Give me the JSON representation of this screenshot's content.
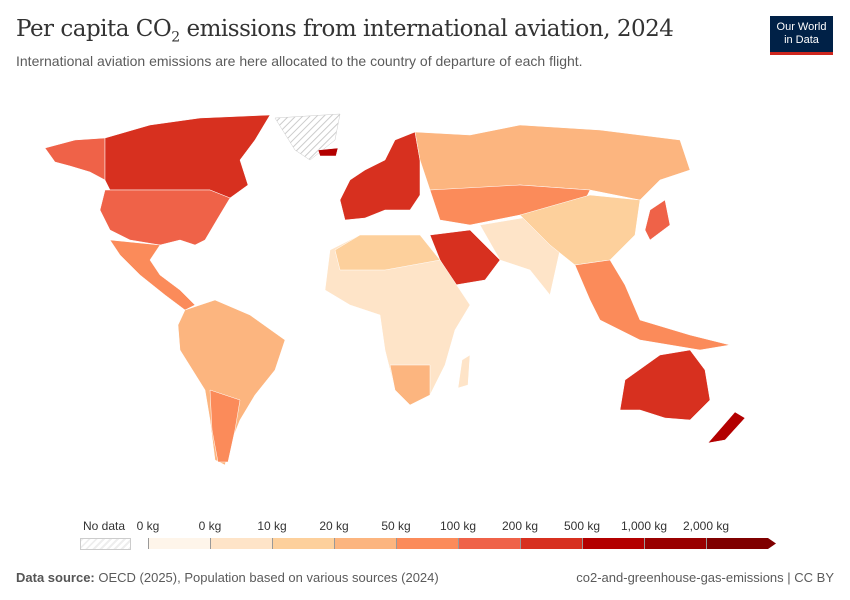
{
  "header": {
    "title_pre": "Per capita CO",
    "title_sub": "2",
    "title_post": " emissions from international aviation, 2024",
    "subtitle": "International aviation emissions are here allocated to the country of departure of each flight.",
    "logo_line1": "Our World",
    "logo_line2": "in Data"
  },
  "legend": {
    "no_data": "No data",
    "labels": [
      "0 kg",
      "0 kg",
      "10 kg",
      "20 kg",
      "50 kg",
      "100 kg",
      "200 kg",
      "500 kg",
      "1,000 kg",
      "2,000 kg"
    ],
    "colors": [
      "#fef5ea",
      "#fee4c8",
      "#fdd09c",
      "#fcb57f",
      "#fb8b5a",
      "#ef6248",
      "#d7301f",
      "#b30000",
      "#990000",
      "#7f0000"
    ]
  },
  "footer": {
    "source_label": "Data source:",
    "source": " OECD (2025), Population based on various sources (2024)",
    "right": "co2-and-greenhouse-gas-emissions | CC BY"
  }
}
